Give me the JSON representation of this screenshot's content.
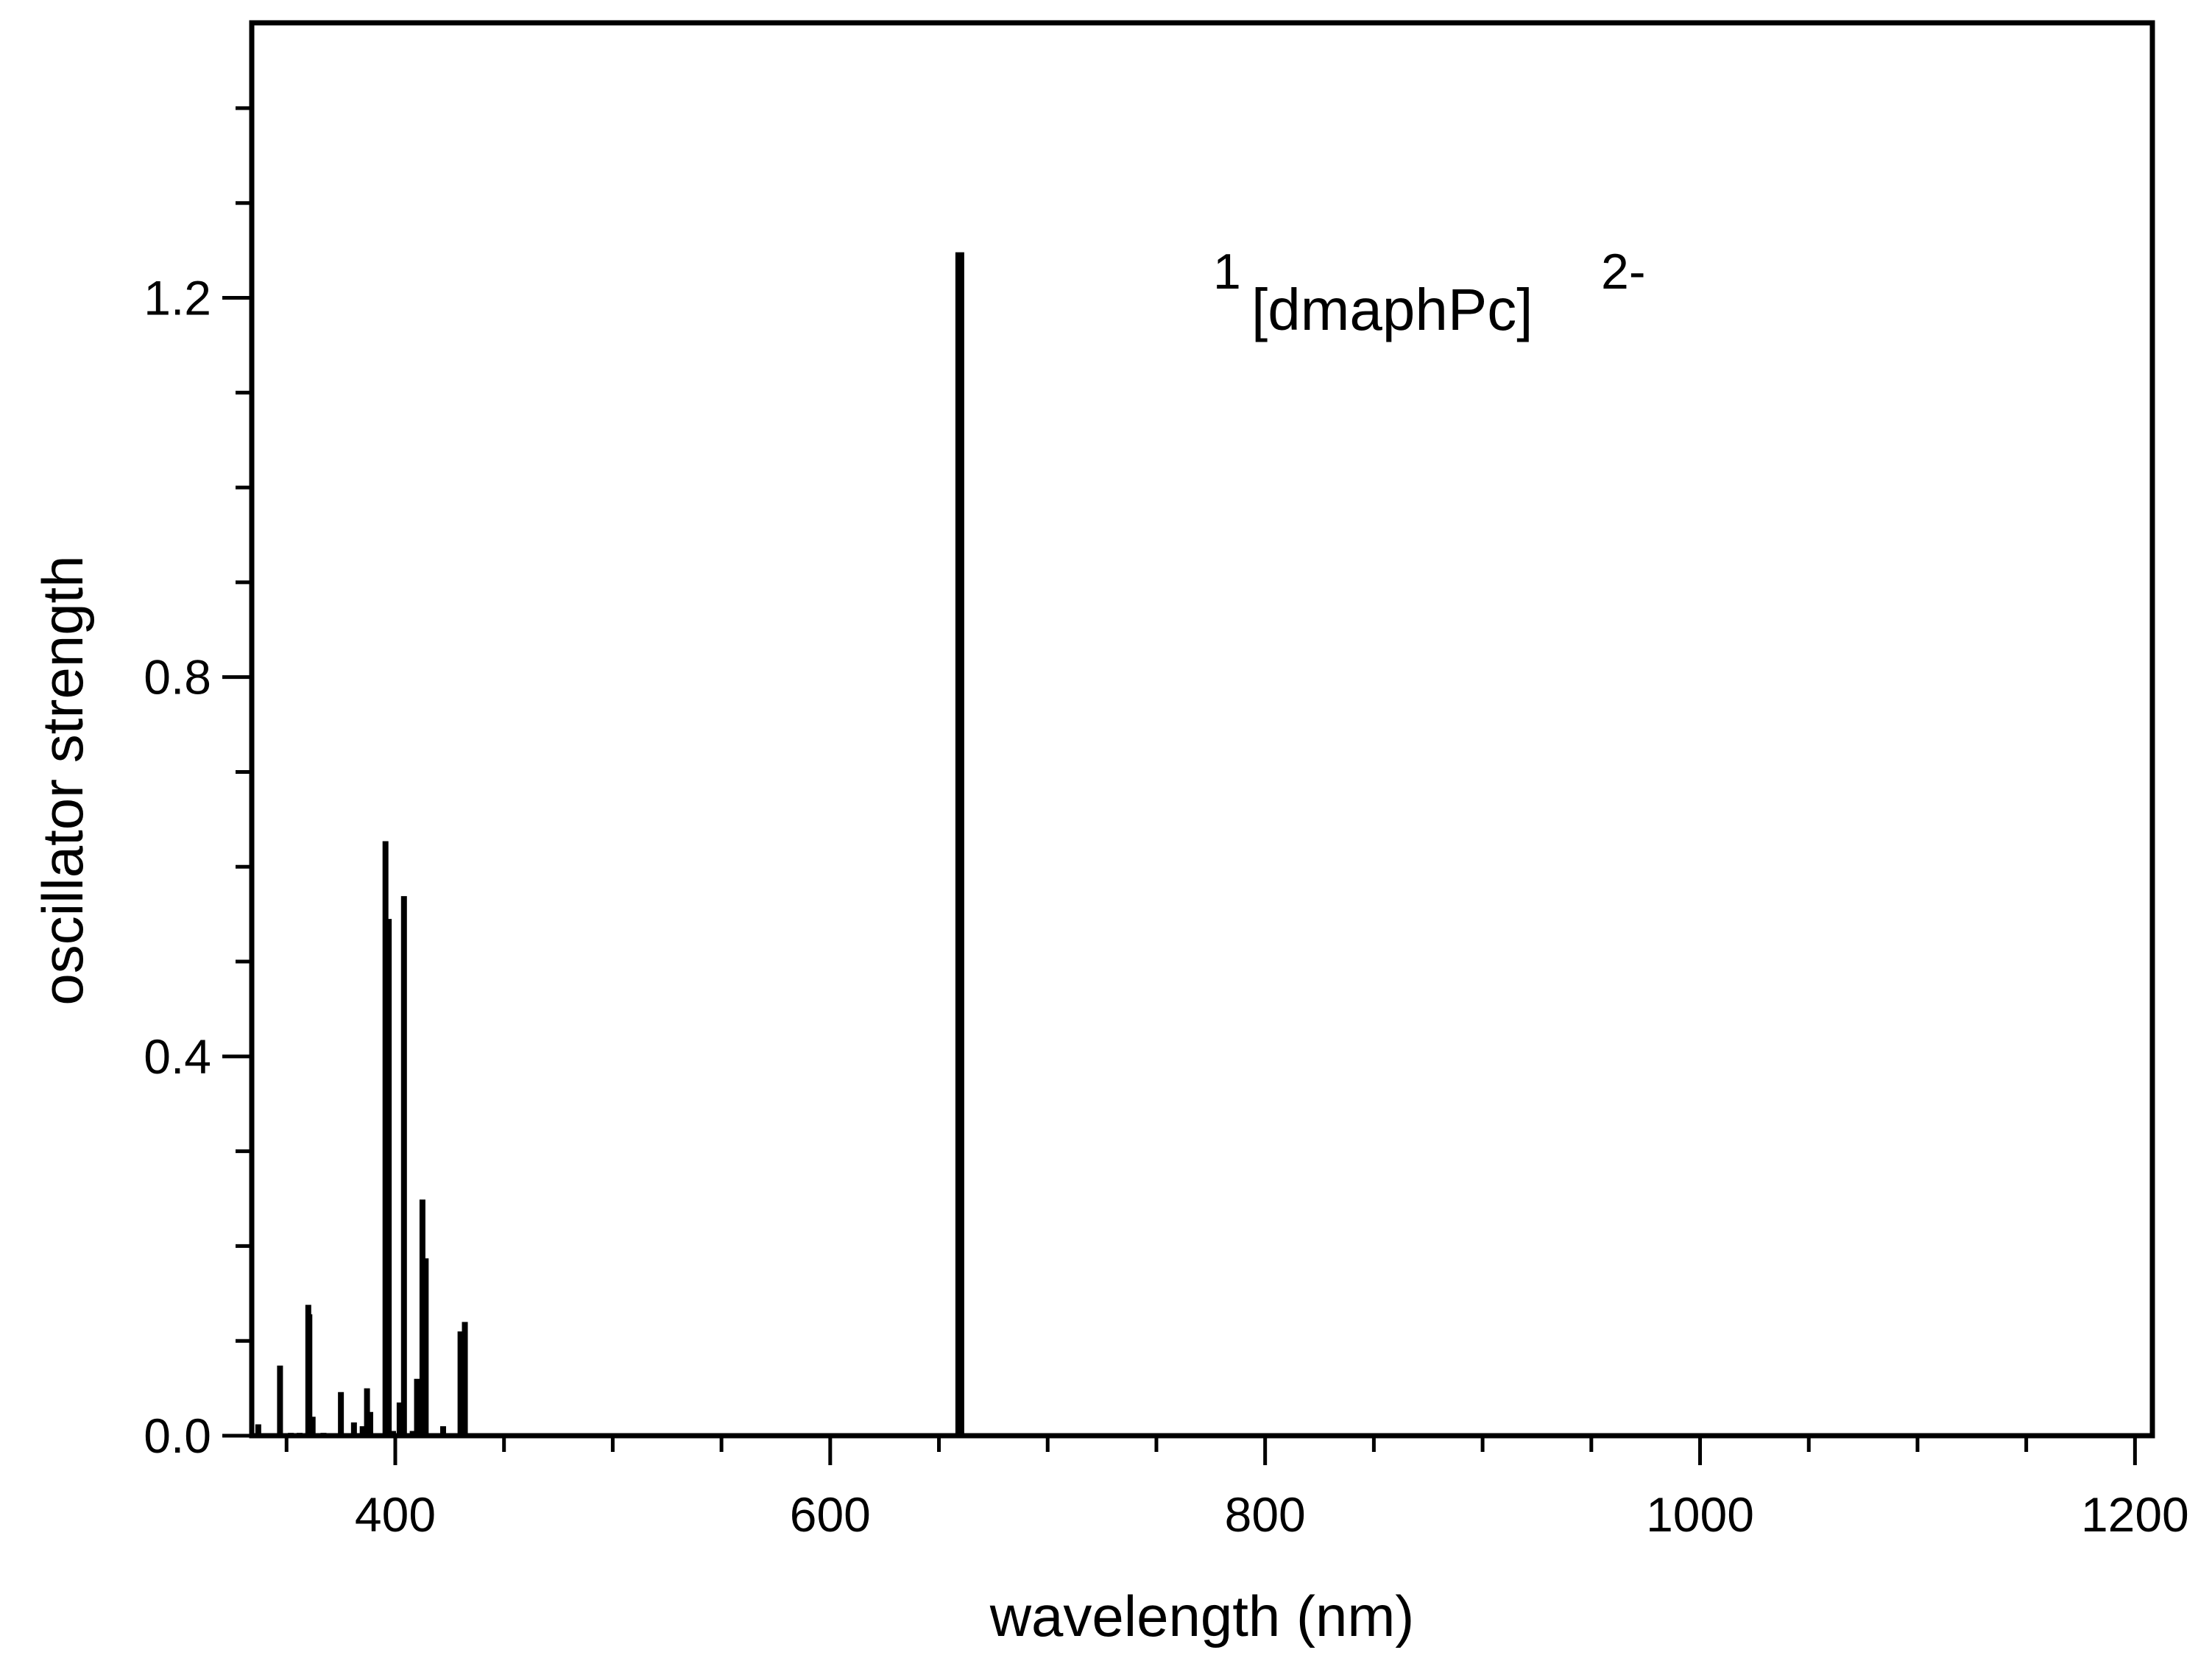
{
  "chart_data": {
    "type": "bar",
    "subtype": "stick_spectrum",
    "title": "",
    "xlabel": "wavelength (nm)",
    "ylabel": "oscillator strength",
    "xlim": [
      334,
      1208
    ],
    "ylim": [
      0.0,
      1.49
    ],
    "x_ticks_major": [
      400,
      600,
      800,
      1000,
      1200
    ],
    "x_tick_labels": [
      "400",
      "600",
      "800",
      "1000",
      "1200"
    ],
    "x_ticks_minor_step": 50,
    "y_ticks_major": [
      0.0,
      0.4,
      0.8,
      1.2
    ],
    "y_tick_labels": [
      "0.0",
      "0.4",
      "0.8",
      "1.2"
    ],
    "y_ticks_minor_step": 0.1,
    "grid": false,
    "legend": null,
    "frame": "box",
    "line_color": "#000000",
    "annotation": {
      "prefix_superscript": "1",
      "main": "[dmaphPc]",
      "suffix_superscript": "2-",
      "full_text": "1[dmaphPc]2-",
      "position_data": [
        780,
        1.22
      ]
    },
    "series": [
      {
        "name": "1[dmaphPc]2-",
        "x": [
          337,
          347,
          352,
          356,
          360,
          360.5,
          362,
          367,
          375,
          381,
          385,
          387,
          388.5,
          395.5,
          397,
          399,
          402,
          404,
          408,
          410,
          412.5,
          414,
          422,
          430,
          432,
          659.6
        ],
        "values": [
          0.012,
          0.074,
          0.003,
          0.003,
          0.138,
          0.128,
          0.02,
          0.003,
          0.046,
          0.014,
          0.01,
          0.05,
          0.025,
          0.627,
          0.545,
          0.005,
          0.035,
          0.569,
          0.005,
          0.06,
          0.249,
          0.187,
          0.01,
          0.11,
          0.12,
          1.248
        ]
      }
    ]
  }
}
